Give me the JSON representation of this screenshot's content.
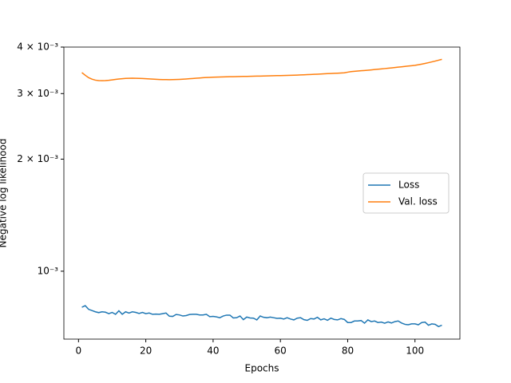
{
  "chart_data": {
    "type": "line",
    "xlabel": "Epochs",
    "ylabel": "Negative log likelihood",
    "x": [
      1,
      2,
      3,
      4,
      5,
      6,
      7,
      8,
      9,
      10,
      11,
      12,
      13,
      14,
      15,
      16,
      17,
      18,
      19,
      20,
      21,
      22,
      23,
      24,
      25,
      26,
      27,
      28,
      29,
      30,
      31,
      32,
      33,
      34,
      35,
      36,
      37,
      38,
      39,
      40,
      41,
      42,
      43,
      44,
      45,
      46,
      47,
      48,
      49,
      50,
      51,
      52,
      53,
      54,
      55,
      56,
      57,
      58,
      59,
      60,
      61,
      62,
      63,
      64,
      65,
      66,
      67,
      68,
      69,
      70,
      71,
      72,
      73,
      74,
      75,
      76,
      77,
      78,
      79,
      80,
      81,
      82,
      83,
      84,
      85,
      86,
      87,
      88,
      89,
      90,
      91,
      92,
      93,
      94,
      95,
      96,
      97,
      98,
      99,
      100,
      101,
      102,
      103,
      104,
      105,
      106,
      107,
      108
    ],
    "series": [
      {
        "name": "Loss",
        "color": "#1f77b4",
        "values": [
          0.0008,
          0.000808,
          0.00079,
          0.000784,
          0.000778,
          0.000774,
          0.000778,
          0.000776,
          0.000769,
          0.000775,
          0.000766,
          0.000783,
          0.000766,
          0.000778,
          0.000772,
          0.000778,
          0.000775,
          0.00077,
          0.000775,
          0.000769,
          0.000772,
          0.000766,
          0.000767,
          0.000766,
          0.000769,
          0.000772,
          0.000757,
          0.000756,
          0.000765,
          0.000763,
          0.000758,
          0.00076,
          0.000765,
          0.000766,
          0.000766,
          0.000763,
          0.000763,
          0.000766,
          0.000755,
          0.000756,
          0.000754,
          0.00075,
          0.000758,
          0.000762,
          0.000762,
          0.000749,
          0.00075,
          0.000758,
          0.000741,
          0.000753,
          0.000749,
          0.000748,
          0.00074,
          0.000758,
          0.000752,
          0.00075,
          0.000753,
          0.00075,
          0.000747,
          0.000748,
          0.000744,
          0.00075,
          0.000744,
          0.00074,
          0.000748,
          0.00075,
          0.000741,
          0.000738,
          0.000746,
          0.000744,
          0.000752,
          0.00074,
          0.000745,
          0.000738,
          0.000748,
          0.000742,
          0.00074,
          0.000746,
          0.000742,
          0.000728,
          0.000728,
          0.000735,
          0.000735,
          0.000737,
          0.000725,
          0.00074,
          0.000732,
          0.000735,
          0.000728,
          0.00073,
          0.000725,
          0.000731,
          0.000726,
          0.000732,
          0.000735,
          0.000726,
          0.00072,
          0.000718,
          0.000722,
          0.000722,
          0.000718,
          0.000728,
          0.00073,
          0.000716,
          0.000722,
          0.00072,
          0.00071,
          0.000716
        ]
      },
      {
        "name": "Val. loss",
        "color": "#ff7f0e",
        "values": [
          0.003416,
          0.00336,
          0.00331,
          0.00328,
          0.00326,
          0.003252,
          0.00325,
          0.003252,
          0.003258,
          0.003266,
          0.003275,
          0.003283,
          0.00329,
          0.003295,
          0.003298,
          0.003299,
          0.003298,
          0.003296,
          0.003293,
          0.003289,
          0.003285,
          0.003281,
          0.003277,
          0.003274,
          0.003272,
          0.003271,
          0.00327,
          0.003271,
          0.003273,
          0.003276,
          0.00328,
          0.003284,
          0.003289,
          0.003294,
          0.003299,
          0.003304,
          0.003309,
          0.003313,
          0.003317,
          0.00332,
          0.003322,
          0.003324,
          0.003326,
          0.003328,
          0.00333,
          0.003331,
          0.003333,
          0.003334,
          0.003336,
          0.003337,
          0.003339,
          0.00334,
          0.003342,
          0.003343,
          0.003345,
          0.003346,
          0.003348,
          0.00335,
          0.003352,
          0.003354,
          0.003356,
          0.003358,
          0.00336,
          0.003362,
          0.003364,
          0.003367,
          0.00337,
          0.003373,
          0.003376,
          0.00338,
          0.003383,
          0.003387,
          0.00339,
          0.003394,
          0.003397,
          0.003401,
          0.003404,
          0.003408,
          0.003411,
          0.003425,
          0.003437,
          0.003443,
          0.003449,
          0.003455,
          0.003461,
          0.003467,
          0.003474,
          0.003481,
          0.003488,
          0.003495,
          0.003502,
          0.003509,
          0.003517,
          0.003525,
          0.003533,
          0.003541,
          0.003549,
          0.003557,
          0.003565,
          0.003574,
          0.003586,
          0.0036,
          0.003615,
          0.003632,
          0.00365,
          0.003668,
          0.003688,
          0.003708
        ]
      }
    ],
    "xlim": [
      -4.35,
      113.35
    ],
    "xticks": [
      0,
      20,
      40,
      60,
      80,
      100
    ],
    "ylim": [
      0.000657,
      0.004
    ],
    "log_y": true,
    "yticks": [
      {
        "value": 0.001,
        "label": "10⁻³"
      },
      {
        "value": 0.002,
        "label": "2 × 10⁻³"
      },
      {
        "value": 0.003,
        "label": "3 × 10⁻³"
      },
      {
        "value": 0.004,
        "label": "4 × 10⁻³"
      }
    ],
    "legend": "center right"
  }
}
